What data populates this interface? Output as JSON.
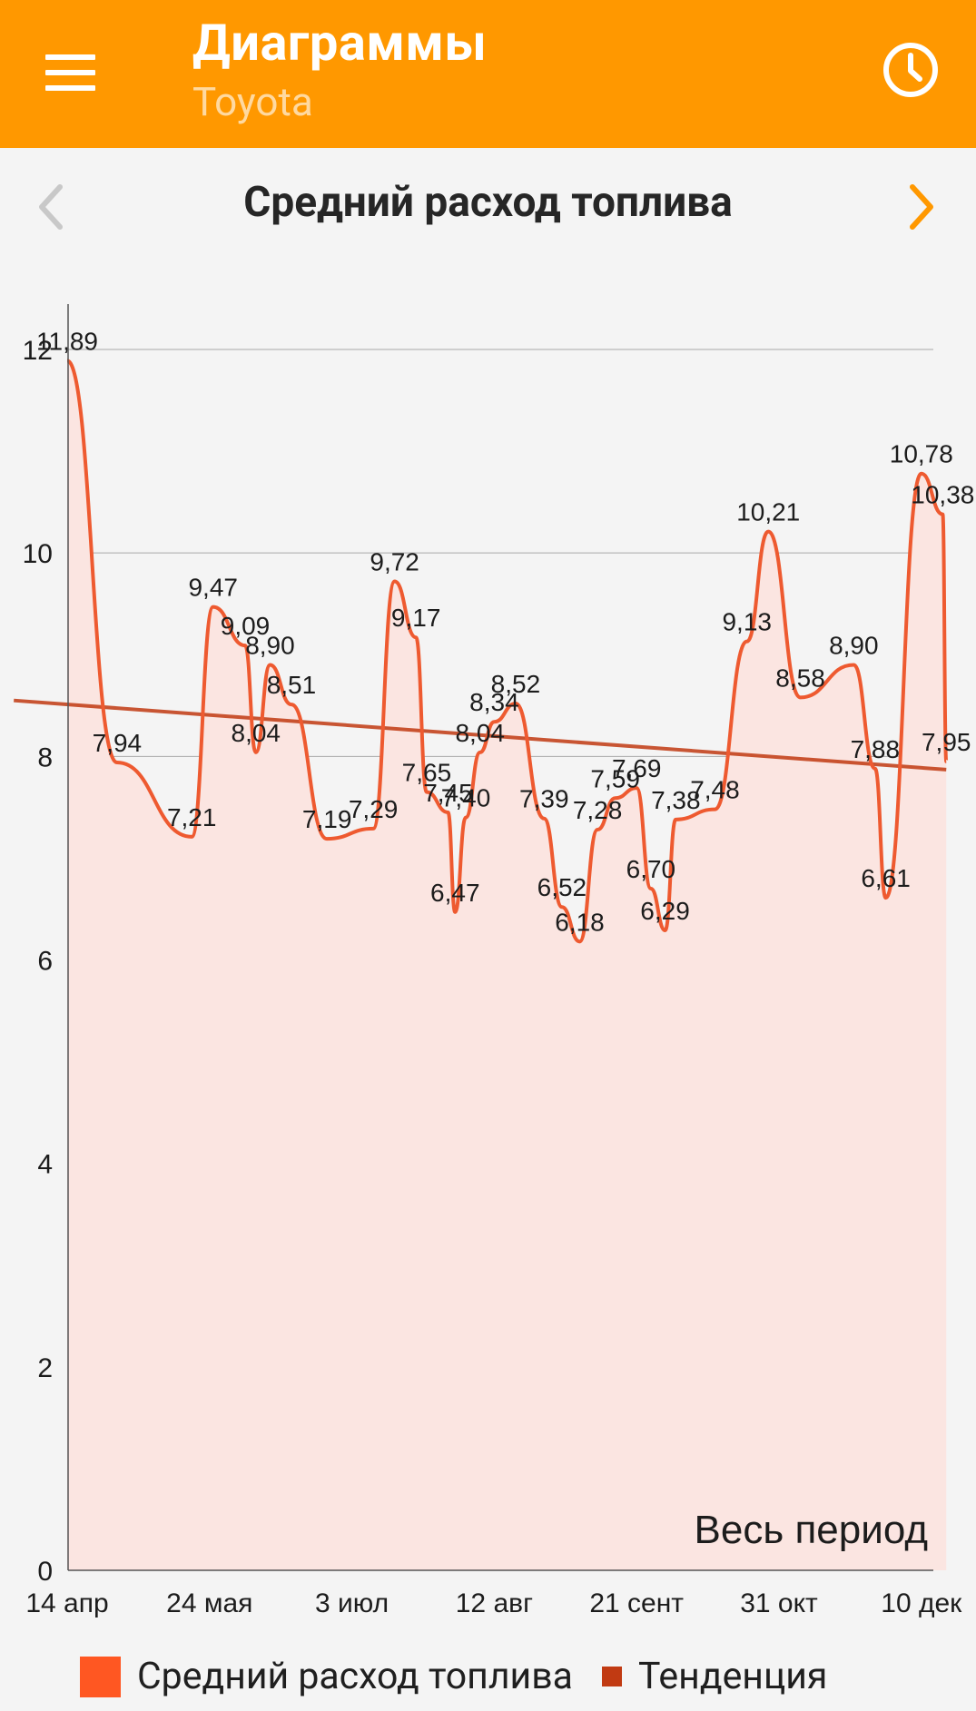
{
  "appbar": {
    "title": "Диаграммы",
    "subtitle": "Toyota",
    "menu_icon": "hamburger-menu-icon",
    "history_icon": "clock-icon"
  },
  "header": {
    "title": "Средний расход топлива",
    "prev_icon": "chevron-left-icon",
    "next_icon": "chevron-right-icon"
  },
  "colors": {
    "appbar": "#ff9800",
    "series_line": "#ee5a30",
    "series_fill": "#fbe5e1",
    "trend": "#c13a12",
    "next_arrow": "#ff9800",
    "prev_arrow": "#c8c8c8"
  },
  "chart_data": {
    "type": "area",
    "title": "Средний расход топлива",
    "period_label": "Весь период",
    "ylim": [
      0,
      12
    ],
    "yticks": [
      0,
      2,
      4,
      6,
      8,
      10,
      12
    ],
    "x_tick_labels": [
      "14 апр",
      "24 мая",
      "3 июл",
      "12 авг",
      "21 сент",
      "31 окт",
      "10 дек"
    ],
    "x_tick_dates": [
      "04-14",
      "05-24",
      "07-03",
      "08-12",
      "09-21",
      "10-31",
      "12-10"
    ],
    "grid": true,
    "legend_position": "bottom",
    "series": [
      {
        "name": "Средний расход топлива",
        "points": [
          {
            "date": "04-14",
            "value": 11.89,
            "label": "11,89"
          },
          {
            "date": "04-28",
            "value": 7.94,
            "label": "7,94"
          },
          {
            "date": "05-19",
            "value": 7.21,
            "label": "7,21"
          },
          {
            "date": "05-25",
            "value": 9.47,
            "label": "9,47"
          },
          {
            "date": "06-03",
            "value": 9.09,
            "label": "9,09"
          },
          {
            "date": "06-06",
            "value": 8.04,
            "label": "8,04"
          },
          {
            "date": "06-10",
            "value": 8.9,
            "label": "8,90"
          },
          {
            "date": "06-16",
            "value": 8.51,
            "label": "8,51"
          },
          {
            "date": "06-26",
            "value": 7.19,
            "label": "7,19"
          },
          {
            "date": "07-09",
            "value": 7.29,
            "label": "7,29"
          },
          {
            "date": "07-15",
            "value": 9.72,
            "label": "9,72"
          },
          {
            "date": "07-21",
            "value": 9.17,
            "label": "9,17"
          },
          {
            "date": "07-24",
            "value": 7.65,
            "label": "7,65"
          },
          {
            "date": "07-30",
            "value": 7.45,
            "label": "7,45"
          },
          {
            "date": "08-01",
            "value": 6.47,
            "label": "6,47"
          },
          {
            "date": "08-04",
            "value": 7.4,
            "label": "7,40"
          },
          {
            "date": "08-08",
            "value": 8.04,
            "label": "8,04"
          },
          {
            "date": "08-12",
            "value": 8.34,
            "label": "8,34"
          },
          {
            "date": "08-18",
            "value": 8.52,
            "label": "8,52"
          },
          {
            "date": "08-26",
            "value": 7.39,
            "label": "7,39"
          },
          {
            "date": "08-31",
            "value": 6.52,
            "label": "6,52"
          },
          {
            "date": "09-05",
            "value": 6.18,
            "label": "6,18"
          },
          {
            "date": "09-10",
            "value": 7.28,
            "label": "7,28"
          },
          {
            "date": "09-15",
            "value": 7.59,
            "label": "7,59"
          },
          {
            "date": "09-21",
            "value": 7.69,
            "label": "7,69"
          },
          {
            "date": "09-25",
            "value": 6.7,
            "label": "6,70"
          },
          {
            "date": "09-29",
            "value": 6.29,
            "label": "6,29"
          },
          {
            "date": "10-02",
            "value": 7.38,
            "label": "7,38"
          },
          {
            "date": "10-13",
            "value": 7.48,
            "label": "7,48"
          },
          {
            "date": "10-22",
            "value": 9.13,
            "label": "9,13"
          },
          {
            "date": "10-28",
            "value": 10.21,
            "label": "10,21"
          },
          {
            "date": "11-06",
            "value": 8.58,
            "label": "8,58"
          },
          {
            "date": "11-21",
            "value": 8.9,
            "label": "8,90"
          },
          {
            "date": "11-27",
            "value": 7.88,
            "label": "7,88"
          },
          {
            "date": "11-30",
            "value": 6.61,
            "label": "6,61"
          },
          {
            "date": "12-10",
            "value": 10.78,
            "label": "10,78"
          },
          {
            "date": "12-16",
            "value": 10.38,
            "label": "10,38"
          },
          {
            "date": "12-17",
            "value": 7.95,
            "label": "7,95"
          }
        ]
      },
      {
        "name": "Тенденция",
        "type": "line",
        "points": [
          {
            "date": "03-30",
            "value": 8.55
          },
          {
            "date": "12-17",
            "value": 7.87
          }
        ]
      }
    ]
  }
}
